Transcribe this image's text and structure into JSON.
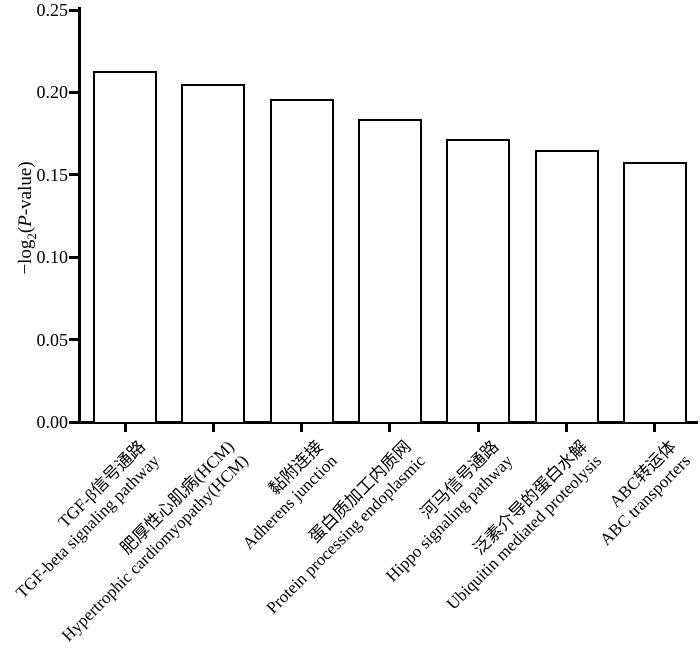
{
  "chart_data": {
    "type": "bar",
    "title": "",
    "xlabel": "",
    "ylabel": "-log2(P-value)",
    "ylabel_parts": {
      "prefix": "−log",
      "sub": "2",
      "open_paren": "(",
      "italic_p": "P",
      "suffix": "-value)"
    },
    "categories": [
      {
        "zh": "TGF-β信号通路",
        "en": "TGF-beta signaling pathway"
      },
      {
        "zh": "肥厚性心肌病(HCM)",
        "en": "Hypertrophic cardiomyopathy(HCM)"
      },
      {
        "zh": "黏附连接",
        "en": "Adherens junction"
      },
      {
        "zh": "蛋白质加工内质网",
        "en": "Protein processing endoplasmic"
      },
      {
        "zh": "河马信号通路",
        "en": "Hippo signaling pathway"
      },
      {
        "zh": "泛素介导的蛋白水解",
        "en": "Ubiquitin mediated proteolysis"
      },
      {
        "zh": "ABC转运体",
        "en": "ABC transporters"
      }
    ],
    "values": [
      0.213,
      0.205,
      0.196,
      0.184,
      0.172,
      0.165,
      0.158
    ],
    "ylim": [
      0,
      0.25
    ],
    "ytick_values": [
      0,
      0.05,
      0.1,
      0.15,
      0.2,
      0.25
    ],
    "ytick_labels": [
      "0.00",
      "0.05",
      "0.10",
      "0.15",
      "0.20",
      "0.25"
    ],
    "grid": false,
    "legend": "none",
    "bar_fill": "#ffffff",
    "bar_stroke": "#000000",
    "background": "#ffffff"
  }
}
